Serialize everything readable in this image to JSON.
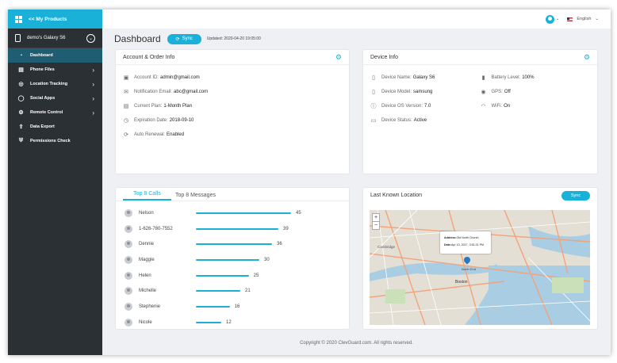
{
  "sidebar": {
    "brand": "<< My Products",
    "device": "demo's Galaxy S6",
    "items": [
      {
        "label": "Dashboard",
        "icon": "dashboard-icon",
        "glyph": "◔",
        "arrow": ""
      },
      {
        "label": "Phone Files",
        "icon": "phone-files-icon",
        "glyph": "▤",
        "arrow": "›"
      },
      {
        "label": "Location Tracking",
        "icon": "location-icon",
        "glyph": "◎",
        "arrow": "›"
      },
      {
        "label": "Social Apps",
        "icon": "chat-icon",
        "glyph": "◯",
        "arrow": "›"
      },
      {
        "label": "Remote Control",
        "icon": "remote-control-icon",
        "glyph": "⚙",
        "arrow": "›"
      },
      {
        "label": "Data Export",
        "icon": "export-icon",
        "glyph": "⇪",
        "arrow": ""
      },
      {
        "label": "Permissions Check",
        "icon": "shield-icon",
        "glyph": "⛨",
        "arrow": ""
      }
    ]
  },
  "topbar": {
    "language": "English",
    "caret": "⌄"
  },
  "header": {
    "title": "Dashboard",
    "sync": "Sync",
    "updated": "Updated: 2020-04-20 19:05:00"
  },
  "account": {
    "title": "Account & Order Info",
    "rows": [
      {
        "label": "Account ID:",
        "value": "admin@gmail.com",
        "glyph": "▣",
        "icon": "id-card-icon"
      },
      {
        "label": "Notification Email:",
        "value": "abc@gmail.com",
        "glyph": "✉",
        "icon": "mail-icon"
      },
      {
        "label": "Current Plan:",
        "value": "1-Month Plan",
        "glyph": "▤",
        "icon": "plan-icon"
      },
      {
        "label": "Expiration Date:",
        "value": "2018-09-10",
        "glyph": "◷",
        "icon": "clock-icon"
      },
      {
        "label": "Auto Renewal:",
        "value": "Enabled",
        "glyph": "⟳",
        "icon": "renewal-icon"
      }
    ]
  },
  "device_info": {
    "title": "Device Info",
    "left": [
      {
        "label": "Device Name:",
        "value": "Galaxy S6",
        "glyph": "▯",
        "icon": "phone-icon"
      },
      {
        "label": "Device Model:",
        "value": "samsung",
        "glyph": "▯",
        "icon": "device-model-icon"
      },
      {
        "label": "Device OS Version:",
        "value": "7.0",
        "glyph": "ⓘ",
        "icon": "info-icon"
      },
      {
        "label": "Device Status:",
        "value": "Active",
        "glyph": "▭",
        "icon": "monitor-icon"
      }
    ],
    "right": [
      {
        "label": "Battery Level:",
        "value": "100%",
        "glyph": "▮",
        "icon": "battery-icon"
      },
      {
        "label": "GPS:",
        "value": "Off",
        "glyph": "◉",
        "icon": "gps-icon"
      },
      {
        "label": "WiFi:",
        "value": "On",
        "glyph": "◠",
        "icon": "wifi-icon"
      }
    ]
  },
  "top_calls": {
    "tabs": [
      "Top 8 Calls",
      "Top 8 Messages"
    ],
    "max": 45,
    "items": [
      {
        "name": "Nelson",
        "count": 45
      },
      {
        "name": "1-626-780-7552",
        "count": 39
      },
      {
        "name": "Dennie",
        "count": 36
      },
      {
        "name": "Maggie",
        "count": 30
      },
      {
        "name": "Helen",
        "count": 25
      },
      {
        "name": "Michelle",
        "count": 21
      },
      {
        "name": "Stephenie",
        "count": 16
      },
      {
        "name": "Nicole",
        "count": 12
      }
    ]
  },
  "location": {
    "title": "Last Known Location",
    "sync": "Sync",
    "zoom_in": "+",
    "zoom_out": "−",
    "popup_address_label": "Address:",
    "popup_address": "Old North Church",
    "popup_date_label": "Date:",
    "popup_date": "Apr 10, 2017, 3:51:31 PM",
    "places": [
      "Cambridge",
      "Boston",
      "North End"
    ]
  },
  "footer": "Copyright © 2020 ClevGuard.com. All rights reserved.",
  "colors": {
    "accent": "#1ab1d8",
    "sidebar": "#2b3035",
    "active": "#1f5d73"
  }
}
